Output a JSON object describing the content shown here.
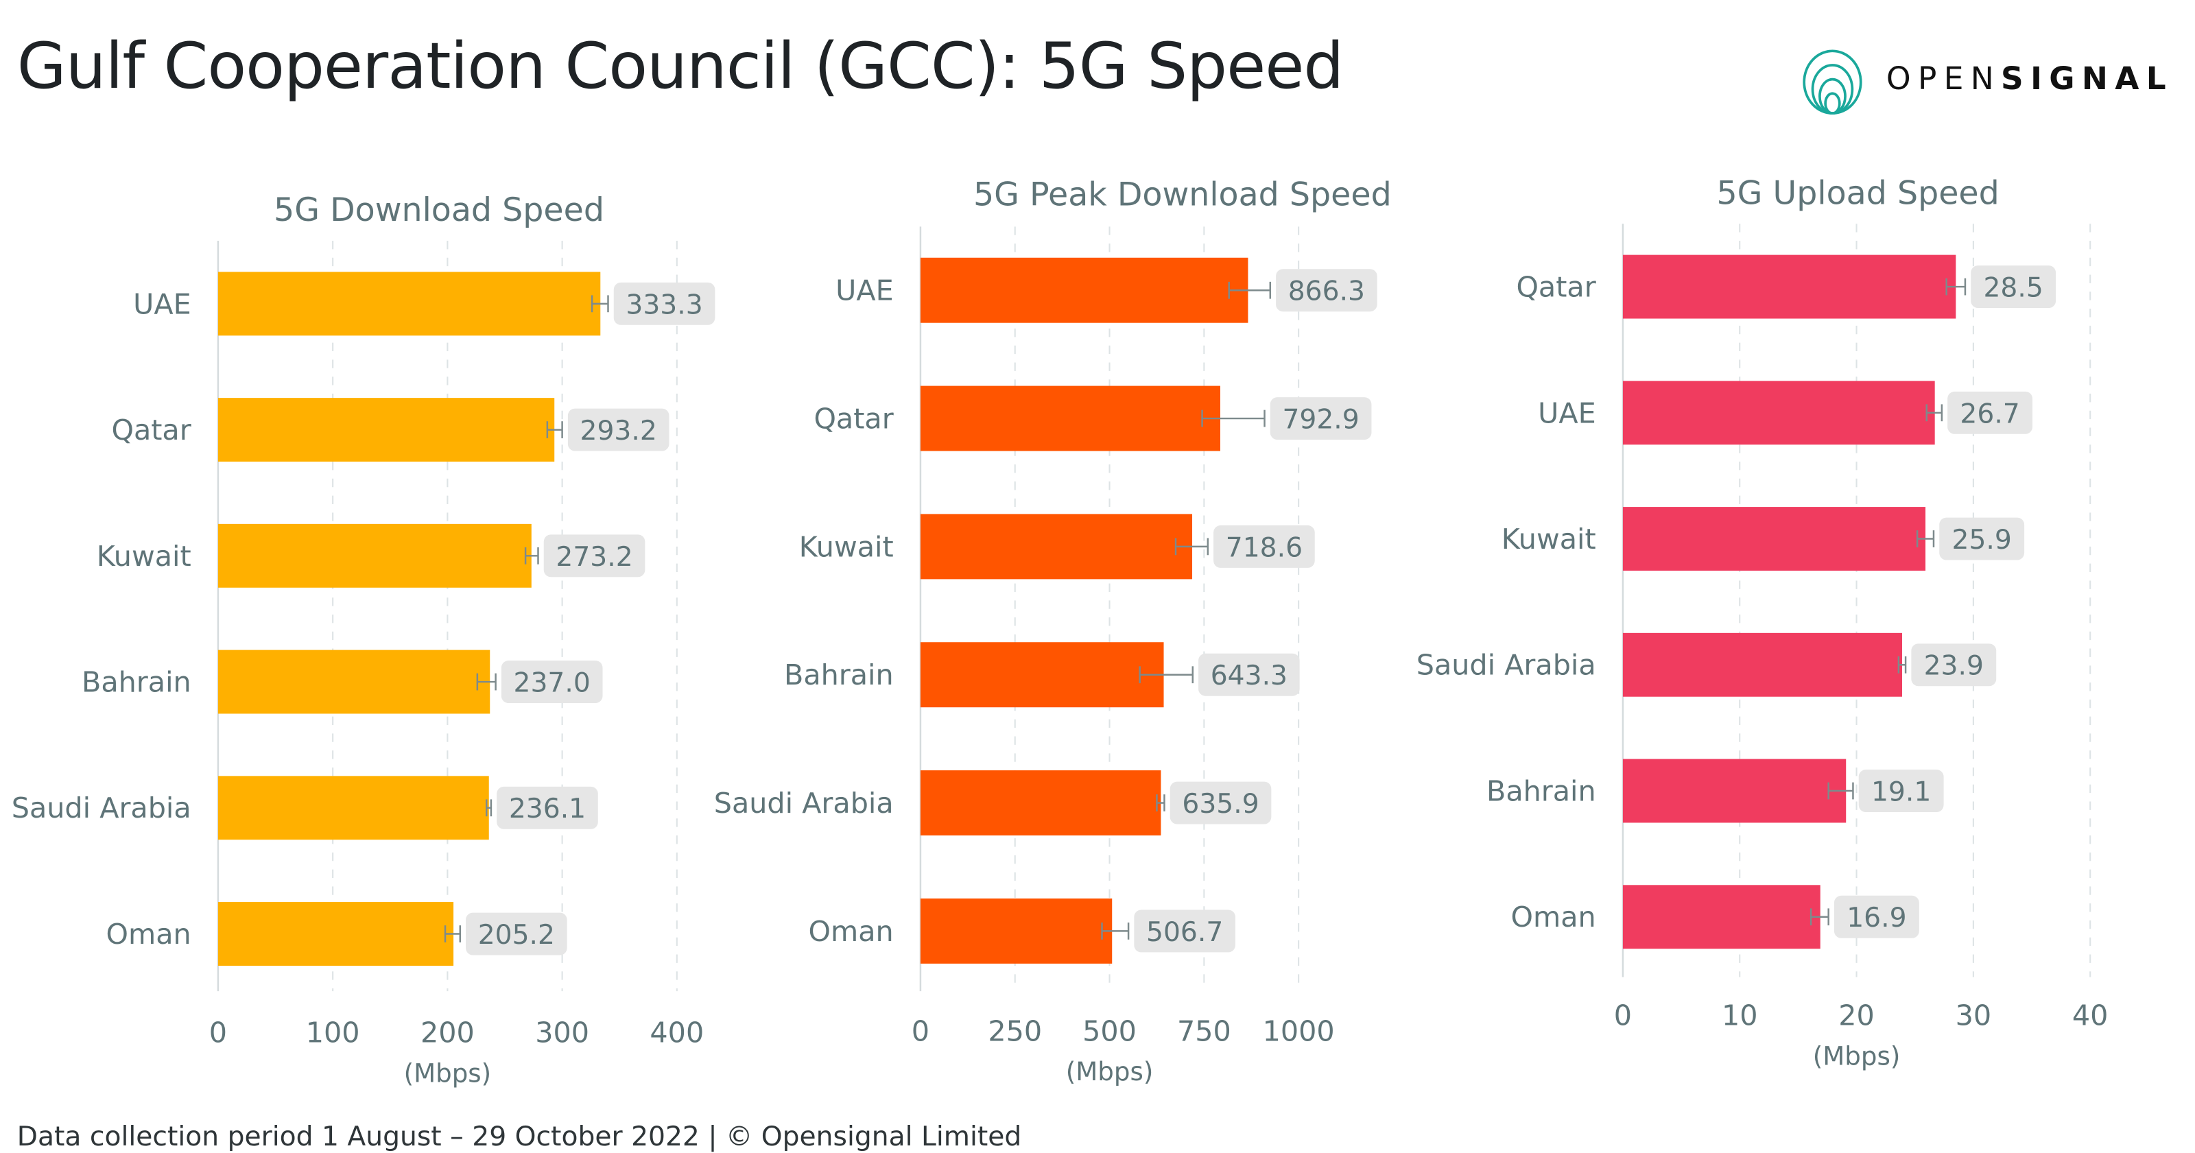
{
  "title": "Gulf Cooperation Council (GCC): 5G Speed",
  "footer": "Data collection period 1 August – 29 October 2022  |  © Opensignal Limited",
  "logo": {
    "text_light": "OPEN",
    "text_bold": "SIGNAL",
    "color": "#1aa89b"
  },
  "chart_data": [
    {
      "type": "bar",
      "orientation": "horizontal",
      "title": "5G Download Speed",
      "xlabel": "(Mbps)",
      "xlim": [
        0,
        400
      ],
      "ticks": [
        0,
        100,
        200,
        300,
        400
      ],
      "color": "#ffb000",
      "categories": [
        "UAE",
        "Qatar",
        "Kuwait",
        "Bahrain",
        "Saudi Arabia",
        "Oman"
      ],
      "values": [
        333.3,
        293.2,
        273.2,
        237.0,
        236.1,
        205.2
      ],
      "labels": [
        "333.3",
        "293.2",
        "273.2",
        "237.0",
        "236.1",
        "205.2"
      ],
      "ci": [
        [
          326,
          340
        ],
        [
          287,
          300
        ],
        [
          268,
          279
        ],
        [
          226,
          242
        ],
        [
          234,
          238
        ],
        [
          198,
          211
        ]
      ],
      "grid": true
    },
    {
      "type": "bar",
      "orientation": "horizontal",
      "title": "5G Peak Download Speed",
      "xlabel": "(Mbps)",
      "xlim": [
        0,
        1000
      ],
      "ticks": [
        0,
        250,
        500,
        750,
        1000
      ],
      "color": "#ff5500",
      "categories": [
        "UAE",
        "Qatar",
        "Kuwait",
        "Bahrain",
        "Saudi Arabia",
        "Oman"
      ],
      "values": [
        866.3,
        792.9,
        718.6,
        643.3,
        635.9,
        506.7
      ],
      "labels": [
        "866.3",
        "792.9",
        "718.6",
        "643.3",
        "635.9",
        "506.7"
      ],
      "ci": [
        [
          816,
          925
        ],
        [
          745,
          910
        ],
        [
          675,
          760
        ],
        [
          580,
          720
        ],
        [
          625,
          645
        ],
        [
          480,
          550
        ]
      ],
      "grid": true
    },
    {
      "type": "bar",
      "orientation": "horizontal",
      "title": "5G Upload Speed",
      "xlabel": "(Mbps)",
      "xlim": [
        0,
        40
      ],
      "ticks": [
        0,
        10,
        20,
        30,
        40
      ],
      "color": "#f03c5f",
      "categories": [
        "Qatar",
        "UAE",
        "Kuwait",
        "Saudi Arabia",
        "Bahrain",
        "Oman"
      ],
      "values": [
        28.5,
        26.7,
        25.9,
        23.9,
        19.1,
        16.9
      ],
      "labels": [
        "28.5",
        "26.7",
        "25.9",
        "23.9",
        "19.1",
        "16.9"
      ],
      "ci": [
        [
          27.7,
          29.3
        ],
        [
          26.0,
          27.3
        ],
        [
          25.2,
          26.6
        ],
        [
          23.6,
          24.2
        ],
        [
          17.6,
          19.7
        ],
        [
          16.1,
          17.6
        ]
      ],
      "grid": true
    }
  ]
}
